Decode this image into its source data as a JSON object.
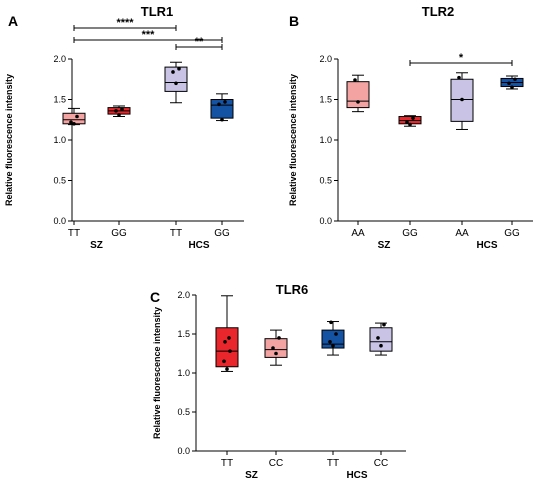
{
  "chart_data": [
    {
      "type": "box",
      "panel": "A",
      "title": "TLR1",
      "ylabel": "Relative fluorescence intensity",
      "ylim": [
        0,
        2.0
      ],
      "yticks": [
        "0.0",
        "0.5",
        "1.0",
        "1.5",
        "2.0"
      ],
      "categories": [
        "TT",
        "GG",
        "TT",
        "GG"
      ],
      "groups": [
        {
          "label": "SZ",
          "members": [
            0,
            1
          ]
        },
        {
          "label": "HCS",
          "members": [
            2,
            3
          ]
        }
      ],
      "boxes": [
        {
          "min": 1.19,
          "q1": 1.2,
          "median": 1.25,
          "q3": 1.33,
          "max": 1.39,
          "color": "#f4a3a3",
          "points": [
            1.2,
            1.22,
            1.29
          ]
        },
        {
          "min": 1.29,
          "q1": 1.32,
          "median": 1.36,
          "q3": 1.4,
          "max": 1.42,
          "color": "#e8262b",
          "points": [
            1.31,
            1.36,
            1.38
          ]
        },
        {
          "min": 1.46,
          "q1": 1.6,
          "median": 1.71,
          "q3": 1.9,
          "max": 1.96,
          "color": "#c9c3e6",
          "points": [
            1.7,
            1.84,
            1.88
          ]
        },
        {
          "min": 1.24,
          "q1": 1.27,
          "median": 1.43,
          "q3": 1.5,
          "max": 1.57,
          "color": "#1452a3",
          "points": [
            1.25,
            1.44,
            1.47
          ]
        }
      ],
      "significance": [
        {
          "from": 0,
          "to": 2,
          "label": "****"
        },
        {
          "from": 0,
          "to": 3,
          "label": "***"
        },
        {
          "from": 2,
          "to": 3,
          "label": "**"
        }
      ]
    },
    {
      "type": "box",
      "panel": "B",
      "title": "TLR2",
      "ylabel": "Relative fluorescence intensity",
      "ylim": [
        0,
        2.0
      ],
      "yticks": [
        "0.0",
        "0.5",
        "1.0",
        "1.5",
        "2.0"
      ],
      "categories": [
        "AA",
        "GG",
        "AA",
        "GG"
      ],
      "groups": [
        {
          "label": "SZ",
          "members": [
            0,
            1
          ]
        },
        {
          "label": "HCS",
          "members": [
            2,
            3
          ]
        }
      ],
      "boxes": [
        {
          "min": 1.35,
          "q1": 1.4,
          "median": 1.48,
          "q3": 1.72,
          "max": 1.8,
          "color": "#f4a3a3",
          "points": [
            1.47,
            1.74
          ]
        },
        {
          "min": 1.17,
          "q1": 1.2,
          "median": 1.24,
          "q3": 1.29,
          "max": 1.3,
          "color": "#e8262b",
          "points": [
            1.19,
            1.22,
            1.27
          ]
        },
        {
          "min": 1.13,
          "q1": 1.23,
          "median": 1.5,
          "q3": 1.75,
          "max": 1.83,
          "color": "#c9c3e6",
          "points": [
            1.5,
            1.77
          ]
        },
        {
          "min": 1.63,
          "q1": 1.66,
          "median": 1.71,
          "q3": 1.76,
          "max": 1.79,
          "color": "#1452a3",
          "points": [
            1.65,
            1.7,
            1.75
          ]
        }
      ],
      "significance": [
        {
          "from": 1,
          "to": 3,
          "label": "*"
        }
      ]
    },
    {
      "type": "box",
      "panel": "C",
      "title": "TLR6",
      "ylabel": "Relative fluorescence intensity",
      "ylim": [
        0,
        2.0
      ],
      "yticks": [
        "0.0",
        "0.5",
        "1.0",
        "1.5",
        "2.0"
      ],
      "categories": [
        "TT",
        "CC",
        "TT",
        "CC"
      ],
      "groups": [
        {
          "label": "SZ",
          "members": [
            0,
            1
          ]
        },
        {
          "label": "HCS",
          "members": [
            2,
            3
          ]
        }
      ],
      "boxes": [
        {
          "min": 1.02,
          "q1": 1.08,
          "median": 1.28,
          "q3": 1.58,
          "max": 1.99,
          "color": "#e8262b",
          "points": [
            1.05,
            1.15,
            1.28,
            1.4,
            1.45
          ]
        },
        {
          "min": 1.1,
          "q1": 1.2,
          "median": 1.3,
          "q3": 1.44,
          "max": 1.55,
          "color": "#f4a3a3",
          "points": [
            1.25,
            1.32,
            1.45
          ]
        },
        {
          "min": 1.23,
          "q1": 1.32,
          "median": 1.37,
          "q3": 1.55,
          "max": 1.66,
          "color": "#1452a3",
          "points": [
            1.35,
            1.4,
            1.5,
            1.65
          ]
        },
        {
          "min": 1.23,
          "q1": 1.28,
          "median": 1.4,
          "q3": 1.58,
          "max": 1.64,
          "color": "#c9c3e6",
          "points": [
            1.35,
            1.45,
            1.62
          ]
        }
      ],
      "significance": []
    }
  ]
}
